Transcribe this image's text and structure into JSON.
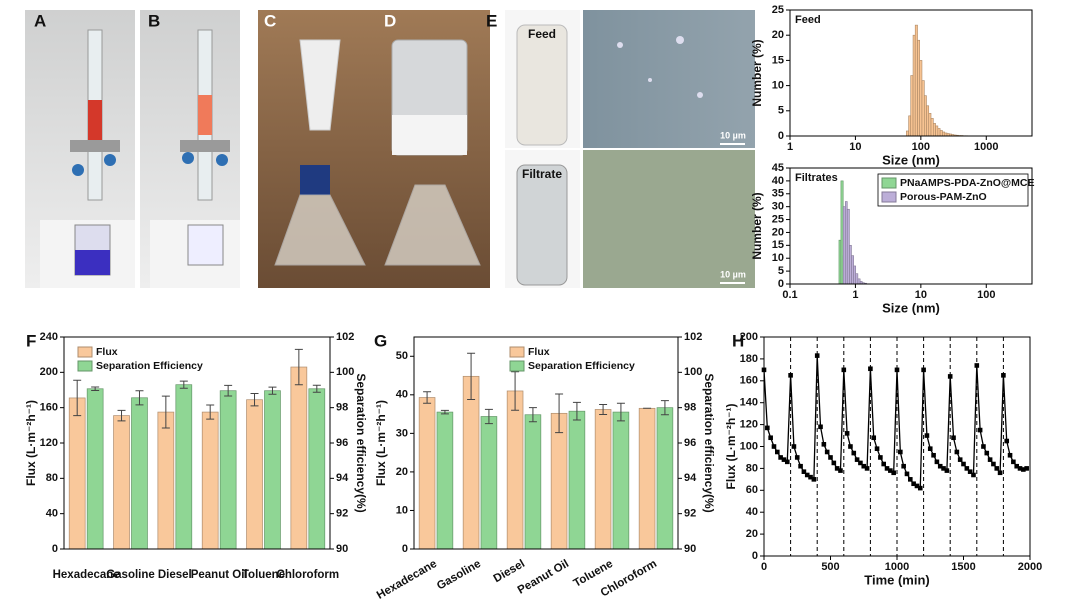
{
  "panel_labels": [
    "A",
    "B",
    "C",
    "D",
    "E",
    "F",
    "G",
    "H"
  ],
  "photo_labels": [
    "Feed",
    "Filtrate"
  ],
  "scale_bar": "10 µm",
  "chart_data": [
    {
      "type": "histogram",
      "annotation": "Feed",
      "xlabel": "Size (nm)",
      "ylabel": "Number (%)",
      "xscale": "log",
      "xlim": [
        1,
        5000
      ],
      "xticks": [
        1,
        10,
        100,
        1000
      ],
      "ylim": [
        0,
        25
      ],
      "yticks": [
        0,
        5,
        10,
        15,
        20,
        25
      ],
      "series": [
        {
          "color": "#f7c392",
          "bins": [
            60,
            65,
            70,
            76,
            82,
            89,
            96,
            104,
            113,
            122,
            132,
            143,
            155,
            168,
            182,
            197,
            214,
            232,
            251,
            272,
            295,
            320,
            347,
            376,
            407,
            441,
            478,
            518
          ],
          "values": [
            1,
            4,
            12,
            20,
            22,
            19,
            15,
            11,
            8,
            6,
            4.5,
            3.5,
            2.5,
            2,
            1.5,
            1.1,
            0.8,
            0.6,
            0.5,
            0.4,
            0.3,
            0.2,
            0.15,
            0.1,
            0.1,
            0.05,
            0.05
          ]
        }
      ]
    },
    {
      "type": "histogram",
      "annotation": "Filtrates",
      "xlabel": "Size (nm)",
      "ylabel": "Number (%)",
      "xscale": "log",
      "xlim": [
        0.1,
        500
      ],
      "xticks": [
        0.1,
        1,
        10,
        100
      ],
      "ylim": [
        0,
        45
      ],
      "yticks": [
        0,
        5,
        10,
        15,
        20,
        25,
        30,
        35,
        40,
        45
      ],
      "legend": "upper right",
      "series": [
        {
          "name": "PNaAMPS-PDA-ZnO@MCE",
          "color": "#8fd694",
          "bins": [
            0.56,
            0.6,
            0.65,
            0.7,
            0.75
          ],
          "values": [
            17,
            40,
            11,
            3
          ]
        },
        {
          "name": "Porous-PAM-ZnO",
          "color": "#bcaed8",
          "bins": [
            0.65,
            0.7,
            0.75,
            0.81,
            0.87,
            0.94,
            1.01,
            1.09,
            1.18,
            1.27,
            1.37,
            1.48
          ],
          "values": [
            30,
            32,
            29,
            15,
            11,
            7,
            4,
            2,
            1,
            0.5,
            0.3
          ]
        }
      ]
    },
    {
      "type": "bar",
      "categories": [
        "Hexadecane",
        "Gasoline",
        "Diesel",
        "Peanut Oil",
        "Toluene",
        "Chloroform"
      ],
      "ylabel": "Flux (L·m⁻²h⁻¹)",
      "y2label": "Separation efficiency(%)",
      "label_rotation": 0,
      "legend": "upper left",
      "ylim": [
        0,
        240
      ],
      "yticks": [
        0,
        40,
        80,
        120,
        160,
        200,
        240
      ],
      "y2lim": [
        90,
        102
      ],
      "y2ticks": [
        90,
        92,
        94,
        96,
        98,
        100,
        102
      ],
      "series": [
        {
          "name": "Flux",
          "color": "#f9c89b",
          "values": [
            171,
            151,
            155,
            155,
            169,
            206
          ],
          "errors": [
            20,
            6,
            18,
            8,
            7,
            20
          ]
        },
        {
          "name": "Separation Efficiency",
          "color": "#8fd694",
          "axis": "y2",
          "values": [
            99.07,
            98.56,
            99.3,
            98.96,
            98.96,
            99.07
          ],
          "errors": [
            0.1,
            0.4,
            0.2,
            0.3,
            0.2,
            0.2
          ]
        }
      ]
    },
    {
      "type": "bar",
      "categories": [
        "Hexadecane",
        "Gasoline",
        "Diesel",
        "Peanut Oil",
        "Toluene",
        "Chloroform"
      ],
      "ylabel": "Flux (L·m⁻²h⁻¹)",
      "y2label": "Separation efficiency(%)",
      "label_rotation": -30,
      "legend": "upper center",
      "ylim": [
        0,
        55
      ],
      "yticks": [
        0,
        10,
        20,
        30,
        40,
        50
      ],
      "y2lim": [
        90,
        102
      ],
      "y2ticks": [
        90,
        92,
        94,
        96,
        98,
        100,
        102
      ],
      "series": [
        {
          "name": "Flux",
          "color": "#f9c89b",
          "values": [
            39.3,
            44.8,
            41,
            35.2,
            36.2,
            36.5
          ],
          "errors": [
            1.5,
            6,
            5,
            5,
            1.3,
            0
          ]
        },
        {
          "name": "Separation Efficiency",
          "color": "#8fd694",
          "axis": "y2",
          "values": [
            97.75,
            97.5,
            97.6,
            97.8,
            97.75,
            98.0
          ],
          "errors": [
            0.1,
            0.4,
            0.4,
            0.5,
            0.5,
            0.4
          ]
        }
      ]
    },
    {
      "type": "line",
      "xlabel": "Time (min)",
      "ylabel": "Flux (L·m⁻²h⁻¹)",
      "xlim": [
        0,
        2000
      ],
      "xticks": [
        0,
        500,
        1000,
        1500,
        2000
      ],
      "ylim": [
        0,
        200
      ],
      "yticks": [
        0,
        20,
        40,
        60,
        80,
        100,
        120,
        140,
        160,
        180,
        200
      ],
      "cycle_boundaries": [
        200,
        400,
        600,
        800,
        1000,
        1200,
        1400,
        1600,
        1800
      ],
      "x": [
        0,
        25,
        50,
        75,
        100,
        125,
        150,
        175,
        200,
        225,
        250,
        275,
        300,
        325,
        350,
        375,
        400,
        425,
        450,
        475,
        500,
        525,
        550,
        575,
        600,
        625,
        650,
        675,
        700,
        725,
        750,
        775,
        800,
        825,
        850,
        875,
        900,
        925,
        950,
        975,
        1000,
        1025,
        1050,
        1075,
        1100,
        1125,
        1150,
        1175,
        1200,
        1225,
        1250,
        1275,
        1300,
        1325,
        1350,
        1375,
        1400,
        1425,
        1450,
        1475,
        1500,
        1525,
        1550,
        1575,
        1600,
        1625,
        1650,
        1675,
        1700,
        1725,
        1750,
        1775,
        1800,
        1825,
        1850,
        1875,
        1900,
        1925,
        1950,
        1975
      ],
      "series": [
        {
          "color": "#000000",
          "values": [
            170,
            117,
            108,
            100,
            95,
            90,
            88,
            86,
            165,
            100,
            90,
            82,
            77,
            74,
            72,
            70,
            183,
            118,
            102,
            95,
            90,
            85,
            80,
            78,
            170,
            112,
            100,
            94,
            88,
            85,
            82,
            80,
            171,
            108,
            98,
            90,
            84,
            80,
            78,
            76,
            170,
            95,
            82,
            75,
            70,
            66,
            64,
            62,
            170,
            110,
            98,
            92,
            86,
            82,
            80,
            78,
            164,
            108,
            95,
            88,
            84,
            80,
            77,
            74,
            174,
            115,
            100,
            94,
            88,
            84,
            80,
            76,
            165,
            105,
            92,
            86,
            82,
            80,
            79,
            80
          ]
        }
      ]
    }
  ]
}
